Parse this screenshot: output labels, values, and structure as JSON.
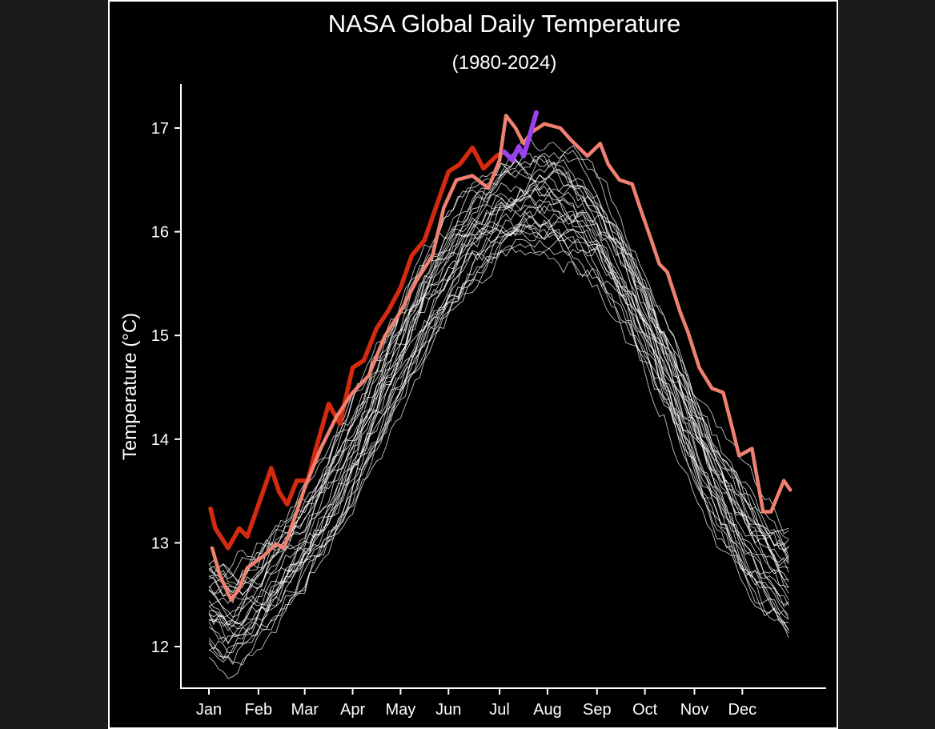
{
  "chart_data": {
    "type": "line",
    "title": "NASA Global Daily Temperature",
    "subtitle": "(1980-2024)",
    "xlabel": "",
    "ylabel": "Temperature (°C)",
    "x_unit": "day of year",
    "xlim": [
      1,
      365
    ],
    "ylim": [
      11.8,
      17.4
    ],
    "grid": false,
    "legend": "none",
    "x_ticks": [
      {
        "label": "Jan",
        "day": 1
      },
      {
        "label": "Feb",
        "day": 32
      },
      {
        "label": "Mar",
        "day": 61
      },
      {
        "label": "Apr",
        "day": 91
      },
      {
        "label": "May",
        "day": 121
      },
      {
        "label": "Jun",
        "day": 151
      },
      {
        "label": "Jul",
        "day": 183
      },
      {
        "label": "Aug",
        "day": 213
      },
      {
        "label": "Sep",
        "day": 244
      },
      {
        "label": "Oct",
        "day": 274
      },
      {
        "label": "Nov",
        "day": 305
      },
      {
        "label": "Dec",
        "day": 335
      }
    ],
    "y_ticks": [
      "12",
      "13",
      "14",
      "15",
      "16",
      "17"
    ],
    "colors": {
      "background_years": "#ffffff",
      "year_2023": "#f08070",
      "year_2024": "#d42a10",
      "recent_2024": "#9b40f0",
      "panel": "#000000"
    },
    "background_days": [
      1,
      15,
      32,
      46,
      60,
      74,
      91,
      105,
      121,
      135,
      152,
      166,
      182,
      196,
      213,
      227,
      244,
      258,
      274,
      288,
      305,
      319,
      335,
      349,
      365
    ],
    "background_series": [
      {
        "values": [
          12.05,
          11.95,
          12.15,
          12.4,
          12.65,
          13.0,
          13.5,
          13.95,
          14.45,
          14.9,
          15.3,
          15.6,
          15.8,
          15.9,
          15.95,
          15.85,
          15.65,
          15.3,
          14.8,
          14.3,
          13.7,
          13.25,
          12.8,
          12.5,
          12.25
        ]
      },
      {
        "values": [
          12.2,
          12.1,
          12.3,
          12.55,
          12.8,
          13.15,
          13.65,
          14.1,
          14.6,
          15.05,
          15.45,
          15.75,
          15.95,
          16.05,
          16.1,
          16.0,
          15.8,
          15.45,
          14.95,
          14.45,
          13.85,
          13.4,
          12.95,
          12.65,
          12.4
        ]
      },
      {
        "values": [
          12.35,
          12.25,
          12.45,
          12.7,
          12.95,
          13.3,
          13.8,
          14.25,
          14.75,
          15.2,
          15.6,
          15.9,
          16.1,
          16.2,
          16.25,
          16.15,
          15.95,
          15.6,
          15.1,
          14.6,
          14.0,
          13.55,
          13.1,
          12.8,
          12.55
        ]
      },
      {
        "values": [
          12.5,
          12.4,
          12.6,
          12.85,
          13.1,
          13.45,
          13.95,
          14.4,
          14.9,
          15.35,
          15.75,
          16.05,
          16.25,
          16.35,
          16.4,
          16.3,
          16.1,
          15.75,
          15.25,
          14.75,
          14.15,
          13.7,
          13.25,
          12.95,
          12.7
        ]
      },
      {
        "values": [
          12.65,
          12.55,
          12.75,
          13.0,
          13.25,
          13.6,
          14.1,
          14.55,
          15.05,
          15.5,
          15.9,
          16.2,
          16.4,
          16.5,
          16.55,
          16.45,
          16.25,
          15.9,
          15.4,
          14.9,
          14.3,
          13.85,
          13.4,
          13.1,
          12.85
        ]
      },
      {
        "values": [
          12.8,
          12.7,
          12.9,
          13.15,
          13.4,
          13.75,
          14.25,
          14.7,
          15.2,
          15.65,
          16.05,
          16.35,
          16.55,
          16.65,
          16.7,
          16.6,
          16.4,
          16.05,
          15.55,
          15.05,
          14.45,
          14.0,
          13.55,
          13.25,
          13.0
        ]
      }
    ],
    "highlight_series": [
      {
        "key": "year_2023",
        "x": [
          3,
          8,
          15,
          20,
          25,
          35,
          43,
          48,
          56,
          61,
          71,
          81,
          91,
          101,
          111,
          121,
          131,
          141,
          148,
          156,
          166,
          176,
          183,
          187,
          193,
          198,
          203,
          211,
          221,
          228,
          238,
          246,
          251,
          258,
          266,
          271,
          278,
          283,
          288,
          296,
          301,
          308,
          316,
          323,
          328,
          333,
          341,
          348,
          353,
          361,
          365
        ],
        "y": [
          12.95,
          12.68,
          12.45,
          12.56,
          12.76,
          12.87,
          12.99,
          12.95,
          13.3,
          13.53,
          13.91,
          14.22,
          14.45,
          14.61,
          14.99,
          15.23,
          15.53,
          15.77,
          16.23,
          16.5,
          16.54,
          16.42,
          16.69,
          17.12,
          17.0,
          16.85,
          16.96,
          17.04,
          17.0,
          16.88,
          16.73,
          16.85,
          16.65,
          16.5,
          16.46,
          16.23,
          15.92,
          15.69,
          15.61,
          15.23,
          15.03,
          14.69,
          14.49,
          14.45,
          14.15,
          13.84,
          13.91,
          13.3,
          13.3,
          13.6,
          13.51
        ]
      },
      {
        "key": "year_2024",
        "x": [
          2,
          5,
          13,
          20,
          25,
          33,
          40,
          45,
          50,
          56,
          63,
          68,
          76,
          83,
          91,
          98,
          106,
          113,
          121,
          128,
          136,
          143,
          151,
          158,
          166,
          173,
          181,
          186
        ],
        "y": [
          13.33,
          13.14,
          12.95,
          13.14,
          13.06,
          13.41,
          13.72,
          13.49,
          13.37,
          13.6,
          13.6,
          13.91,
          14.34,
          14.15,
          14.69,
          14.76,
          15.07,
          15.23,
          15.46,
          15.77,
          15.92,
          16.23,
          16.58,
          16.65,
          16.81,
          16.61,
          16.73,
          16.77
        ]
      },
      {
        "key": "recent_2024",
        "x": [
          186,
          191,
          195,
          198,
          201,
          206
        ],
        "y": [
          16.77,
          16.69,
          16.82,
          16.73,
          16.88,
          17.15
        ]
      }
    ]
  }
}
